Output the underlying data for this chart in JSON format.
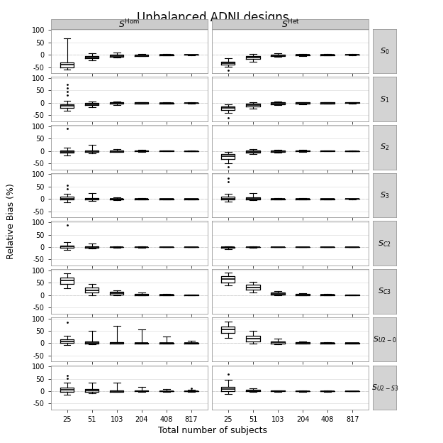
{
  "title": "Unbalanced ADNI designs",
  "col_labels": [
    "$S^{\\mathrm{Hom}}$",
    "$S^{\\mathrm{Het}}$"
  ],
  "row_labels": [
    "$S_{0}$",
    "$S_{1}$",
    "$S_{2}$",
    "$S_{3}$",
    "$S_{C2}$",
    "$S_{C3}$",
    "$S_{U2-0}$",
    "$S_{U2-S3}$"
  ],
  "x_ticks": [
    25,
    51,
    103,
    204,
    408,
    817
  ],
  "xlabel": "Total number of subjects",
  "ylabel": "Relative Bias (%)",
  "background_color": "#ffffff",
  "panel_bg": "#ffffff",
  "header_bg": "#cccccc",
  "label_bg": "#d3d3d3",
  "dashed_color": "#bbbbbb",
  "boxes": {
    "S0_Hom": {
      "25": {
        "q1": -50,
        "med": -40,
        "q3": -30,
        "whislo": -60,
        "whishi": 65,
        "fliers_hi": [],
        "fliers_lo": []
      },
      "51": {
        "q1": -15,
        "med": -10,
        "q3": -5,
        "whislo": -22,
        "whishi": 5,
        "fliers_hi": [],
        "fliers_lo": []
      },
      "103": {
        "q1": -7,
        "med": -4,
        "q3": -1,
        "whislo": -12,
        "whishi": 8,
        "fliers_hi": [],
        "fliers_lo": []
      },
      "204": {
        "q1": -4,
        "med": -2,
        "q3": 0,
        "whislo": -6,
        "whishi": 4,
        "fliers_hi": [],
        "fliers_lo": []
      },
      "408": {
        "q1": -2,
        "med": -1,
        "q3": 0,
        "whislo": -3,
        "whishi": 2,
        "fliers_hi": [],
        "fliers_lo": []
      },
      "817": {
        "q1": -1,
        "med": 0,
        "q3": 0,
        "whislo": -2,
        "whishi": 1,
        "fliers_hi": [],
        "fliers_lo": []
      }
    },
    "S0_Het": {
      "25": {
        "q1": -40,
        "med": -35,
        "q3": -28,
        "whislo": -48,
        "whishi": -15,
        "fliers_hi": [],
        "fliers_lo": [
          -62
        ]
      },
      "51": {
        "q1": -18,
        "med": -12,
        "q3": -6,
        "whislo": -28,
        "whishi": 2,
        "fliers_hi": [],
        "fliers_lo": []
      },
      "103": {
        "q1": -5,
        "med": -2,
        "q3": 1,
        "whislo": -8,
        "whishi": 5,
        "fliers_hi": [],
        "fliers_lo": []
      },
      "204": {
        "q1": -3,
        "med": -1,
        "q3": 1,
        "whislo": -5,
        "whishi": 3,
        "fliers_hi": [],
        "fliers_lo": []
      },
      "408": {
        "q1": -2,
        "med": 0,
        "q3": 1,
        "whislo": -3,
        "whishi": 3,
        "fliers_hi": [],
        "fliers_lo": []
      },
      "817": {
        "q1": -1,
        "med": 0,
        "q3": 1,
        "whislo": -2,
        "whishi": 2,
        "fliers_hi": [],
        "fliers_lo": []
      }
    },
    "S1_Hom": {
      "25": {
        "q1": -20,
        "med": -12,
        "q3": -5,
        "whislo": -32,
        "whishi": 8,
        "fliers_hi": [
          75,
          60,
          45,
          30
        ],
        "fliers_lo": []
      },
      "51": {
        "q1": -10,
        "med": -6,
        "q3": -1,
        "whislo": -18,
        "whishi": 5,
        "fliers_hi": [],
        "fliers_lo": []
      },
      "103": {
        "q1": -4,
        "med": -1,
        "q3": 1,
        "whislo": -8,
        "whishi": 4,
        "fliers_hi": [],
        "fliers_lo": []
      },
      "204": {
        "q1": -2,
        "med": -1,
        "q3": 1,
        "whislo": -4,
        "whishi": 3,
        "fliers_hi": [],
        "fliers_lo": []
      },
      "408": {
        "q1": -2,
        "med": -1,
        "q3": 0,
        "whislo": -3,
        "whishi": 2,
        "fliers_hi": [],
        "fliers_lo": []
      },
      "817": {
        "q1": -1,
        "med": 0,
        "q3": 0,
        "whislo": -2,
        "whishi": 1,
        "fliers_hi": [],
        "fliers_lo": []
      }
    },
    "S1_Het": {
      "25": {
        "q1": -30,
        "med": -22,
        "q3": -15,
        "whislo": -42,
        "whishi": -5,
        "fliers_hi": [],
        "fliers_lo": [
          -62
        ]
      },
      "51": {
        "q1": -15,
        "med": -10,
        "q3": -4,
        "whislo": -24,
        "whishi": 2,
        "fliers_hi": [],
        "fliers_lo": []
      },
      "103": {
        "q1": -5,
        "med": -2,
        "q3": 1,
        "whislo": -8,
        "whishi": 4,
        "fliers_hi": [],
        "fliers_lo": []
      },
      "204": {
        "q1": -3,
        "med": -1,
        "q3": 1,
        "whislo": -5,
        "whishi": 3,
        "fliers_hi": [],
        "fliers_lo": []
      },
      "408": {
        "q1": -2,
        "med": 0,
        "q3": 1,
        "whislo": -3,
        "whishi": 2,
        "fliers_hi": [],
        "fliers_lo": []
      },
      "817": {
        "q1": -1,
        "med": 0,
        "q3": 1,
        "whislo": -2,
        "whishi": 2,
        "fliers_hi": [],
        "fliers_lo": []
      }
    },
    "S2_Hom": {
      "25": {
        "q1": -8,
        "med": -3,
        "q3": 2,
        "whislo": -18,
        "whishi": 12,
        "fliers_hi": [
          90
        ],
        "fliers_lo": []
      },
      "51": {
        "q1": -5,
        "med": -1,
        "q3": 2,
        "whislo": -10,
        "whishi": 25,
        "fliers_hi": [],
        "fliers_lo": []
      },
      "103": {
        "q1": -3,
        "med": 0,
        "q3": 2,
        "whislo": -5,
        "whishi": 7,
        "fliers_hi": [],
        "fliers_lo": []
      },
      "204": {
        "q1": -2,
        "med": 0,
        "q3": 1,
        "whislo": -3,
        "whishi": 4,
        "fliers_hi": [],
        "fliers_lo": []
      },
      "408": {
        "q1": -1,
        "med": 0,
        "q3": 1,
        "whislo": -2,
        "whishi": 2,
        "fliers_hi": [],
        "fliers_lo": []
      },
      "817": {
        "q1": -1,
        "med": 0,
        "q3": 0,
        "whislo": -1,
        "whishi": 1,
        "fliers_hi": [],
        "fliers_lo": []
      }
    },
    "S2_Het": {
      "25": {
        "q1": -32,
        "med": -22,
        "q3": -12,
        "whislo": -50,
        "whishi": -3,
        "fliers_hi": [],
        "fliers_lo": [
          -65
        ]
      },
      "51": {
        "q1": -8,
        "med": -3,
        "q3": 1,
        "whislo": -14,
        "whishi": 7,
        "fliers_hi": [],
        "fliers_lo": []
      },
      "103": {
        "q1": -4,
        "med": 0,
        "q3": 2,
        "whislo": -6,
        "whishi": 5,
        "fliers_hi": [],
        "fliers_lo": []
      },
      "204": {
        "q1": -2,
        "med": 0,
        "q3": 1,
        "whislo": -3,
        "whishi": 3,
        "fliers_hi": [],
        "fliers_lo": []
      },
      "408": {
        "q1": -1,
        "med": 0,
        "q3": 1,
        "whislo": -2,
        "whishi": 2,
        "fliers_hi": [],
        "fliers_lo": []
      },
      "817": {
        "q1": -1,
        "med": 0,
        "q3": 0,
        "whislo": -1,
        "whishi": 1,
        "fliers_hi": [],
        "fliers_lo": []
      }
    },
    "S3_Hom": {
      "25": {
        "q1": -3,
        "med": 2,
        "q3": 8,
        "whislo": -15,
        "whishi": 22,
        "fliers_hi": [
          55,
          42
        ],
        "fliers_lo": []
      },
      "51": {
        "q1": -2,
        "med": 1,
        "q3": 5,
        "whislo": -8,
        "whishi": 25,
        "fliers_hi": [],
        "fliers_lo": []
      },
      "103": {
        "q1": -2,
        "med": 0,
        "q3": 2,
        "whislo": -4,
        "whishi": 6,
        "fliers_hi": [],
        "fliers_lo": []
      },
      "204": {
        "q1": -1,
        "med": 0,
        "q3": 1,
        "whislo": -2,
        "whishi": 3,
        "fliers_hi": [],
        "fliers_lo": []
      },
      "408": {
        "q1": -1,
        "med": 0,
        "q3": 1,
        "whislo": -1,
        "whishi": 2,
        "fliers_hi": [],
        "fliers_lo": []
      },
      "817": {
        "q1": -1,
        "med": 0,
        "q3": 0,
        "whislo": -1,
        "whishi": 1,
        "fliers_hi": [],
        "fliers_lo": []
      }
    },
    "S3_Het": {
      "25": {
        "q1": -3,
        "med": 2,
        "q3": 8,
        "whislo": -12,
        "whishi": 22,
        "fliers_hi": [
          85,
          70
        ],
        "fliers_lo": []
      },
      "51": {
        "q1": -2,
        "med": 2,
        "q3": 7,
        "whislo": -6,
        "whishi": 25,
        "fliers_hi": [],
        "fliers_lo": []
      },
      "103": {
        "q1": -2,
        "med": 0,
        "q3": 2,
        "whislo": -3,
        "whishi": 5,
        "fliers_hi": [],
        "fliers_lo": []
      },
      "204": {
        "q1": -1,
        "med": 0,
        "q3": 1,
        "whislo": -2,
        "whishi": 3,
        "fliers_hi": [],
        "fliers_lo": []
      },
      "408": {
        "q1": -1,
        "med": 0,
        "q3": 1,
        "whislo": -1,
        "whishi": 2,
        "fliers_hi": [],
        "fliers_lo": []
      },
      "817": {
        "q1": 0,
        "med": 0,
        "q3": 1,
        "whislo": -1,
        "whishi": 1,
        "fliers_hi": [],
        "fliers_lo": []
      }
    },
    "SC2_Hom": {
      "25": {
        "q1": -2,
        "med": 2,
        "q3": 7,
        "whislo": -12,
        "whishi": 20,
        "fliers_hi": [
          88
        ],
        "fliers_lo": []
      },
      "51": {
        "q1": -2,
        "med": 0,
        "q3": 3,
        "whislo": -5,
        "whishi": 14,
        "fliers_hi": [],
        "fliers_lo": []
      },
      "103": {
        "q1": -1,
        "med": 0,
        "q3": 1,
        "whislo": -2,
        "whishi": 4,
        "fliers_hi": [],
        "fliers_lo": []
      },
      "204": {
        "q1": -1,
        "med": 0,
        "q3": 1,
        "whislo": -2,
        "whishi": 2,
        "fliers_hi": [],
        "fliers_lo": []
      },
      "408": {
        "q1": -1,
        "med": 0,
        "q3": 1,
        "whislo": -1,
        "whishi": 1,
        "fliers_hi": [],
        "fliers_lo": []
      },
      "817": {
        "q1": 0,
        "med": 0,
        "q3": 0,
        "whislo": -1,
        "whishi": 1,
        "fliers_hi": [],
        "fliers_lo": []
      }
    },
    "SC2_Het": {
      "25": {
        "q1": -2,
        "med": -1,
        "q3": 1,
        "whislo": -8,
        "whishi": 4,
        "fliers_hi": [],
        "fliers_lo": []
      },
      "51": {
        "q1": -1,
        "med": 0,
        "q3": 1,
        "whislo": -2,
        "whishi": 2,
        "fliers_hi": [],
        "fliers_lo": []
      },
      "103": {
        "q1": -1,
        "med": 0,
        "q3": 0,
        "whislo": -1,
        "whishi": 1,
        "fliers_hi": [],
        "fliers_lo": []
      },
      "204": {
        "q1": 0,
        "med": 0,
        "q3": 0,
        "whislo": -1,
        "whishi": 1,
        "fliers_hi": [],
        "fliers_lo": []
      },
      "408": {
        "q1": 0,
        "med": 0,
        "q3": 0,
        "whislo": 0,
        "whishi": 0,
        "fliers_hi": [],
        "fliers_lo": []
      },
      "817": {
        "q1": 0,
        "med": 0,
        "q3": 0,
        "whislo": 0,
        "whishi": 0,
        "fliers_hi": [],
        "fliers_lo": []
      }
    },
    "SC3_Hom": {
      "25": {
        "q1": 45,
        "med": 60,
        "q3": 72,
        "whislo": 28,
        "whishi": 88,
        "fliers_hi": [],
        "fliers_lo": []
      },
      "51": {
        "q1": 10,
        "med": 20,
        "q3": 32,
        "whislo": -2,
        "whishi": 45,
        "fliers_hi": [],
        "fliers_lo": []
      },
      "103": {
        "q1": 2,
        "med": 8,
        "q3": 14,
        "whislo": -2,
        "whishi": 20,
        "fliers_hi": [],
        "fliers_lo": []
      },
      "204": {
        "q1": 0,
        "med": 3,
        "q3": 6,
        "whislo": -2,
        "whishi": 10,
        "fliers_hi": [],
        "fliers_lo": []
      },
      "408": {
        "q1": 0,
        "med": 1,
        "q3": 3,
        "whislo": -1,
        "whishi": 5,
        "fliers_hi": [],
        "fliers_lo": []
      },
      "817": {
        "q1": 0,
        "med": 0,
        "q3": 1,
        "whislo": -1,
        "whishi": 2,
        "fliers_hi": [],
        "fliers_lo": []
      }
    },
    "SC3_Het": {
      "25": {
        "q1": 52,
        "med": 65,
        "q3": 76,
        "whislo": 38,
        "whishi": 90,
        "fliers_hi": [],
        "fliers_lo": []
      },
      "51": {
        "q1": 22,
        "med": 32,
        "q3": 42,
        "whislo": 10,
        "whishi": 55,
        "fliers_hi": [],
        "fliers_lo": []
      },
      "103": {
        "q1": 2,
        "med": 6,
        "q3": 10,
        "whislo": -1,
        "whishi": 15,
        "fliers_hi": [],
        "fliers_lo": []
      },
      "204": {
        "q1": 0,
        "med": 2,
        "q3": 4,
        "whislo": -1,
        "whishi": 7,
        "fliers_hi": [],
        "fliers_lo": []
      },
      "408": {
        "q1": 0,
        "med": 1,
        "q3": 2,
        "whislo": -1,
        "whishi": 4,
        "fliers_hi": [],
        "fliers_lo": []
      },
      "817": {
        "q1": 0,
        "med": 0,
        "q3": 1,
        "whislo": -1,
        "whishi": 2,
        "fliers_hi": [],
        "fliers_lo": []
      }
    },
    "SU20_Hom": {
      "25": {
        "q1": 2,
        "med": 8,
        "q3": 16,
        "whislo": -8,
        "whishi": 30,
        "fliers_hi": [
          85
        ],
        "fliers_lo": []
      },
      "51": {
        "q1": -1,
        "med": 2,
        "q3": 8,
        "whislo": -5,
        "whishi": 50,
        "fliers_hi": [],
        "fliers_lo": []
      },
      "103": {
        "q1": -1,
        "med": 0,
        "q3": 3,
        "whislo": -3,
        "whishi": 70,
        "fliers_hi": [],
        "fliers_lo": []
      },
      "204": {
        "q1": -1,
        "med": 0,
        "q3": 2,
        "whislo": -2,
        "whishi": 55,
        "fliers_hi": [],
        "fliers_lo": []
      },
      "408": {
        "q1": -1,
        "med": 0,
        "q3": 1,
        "whislo": -2,
        "whishi": 28,
        "fliers_hi": [],
        "fliers_lo": []
      },
      "817": {
        "q1": -1,
        "med": 0,
        "q3": 1,
        "whislo": -2,
        "whishi": 10,
        "fliers_hi": [],
        "fliers_lo": []
      }
    },
    "SU20_Het": {
      "25": {
        "q1": 40,
        "med": 55,
        "q3": 68,
        "whislo": 20,
        "whishi": 88,
        "fliers_hi": [],
        "fliers_lo": []
      },
      "51": {
        "q1": 8,
        "med": 18,
        "q3": 30,
        "whislo": -2,
        "whishi": 50,
        "fliers_hi": [],
        "fliers_lo": []
      },
      "103": {
        "q1": -1,
        "med": 3,
        "q3": 8,
        "whislo": -4,
        "whishi": 18,
        "fliers_hi": [],
        "fliers_lo": []
      },
      "204": {
        "q1": -1,
        "med": 1,
        "q3": 3,
        "whislo": -2,
        "whishi": 8,
        "fliers_hi": [],
        "fliers_lo": []
      },
      "408": {
        "q1": -1,
        "med": 0,
        "q3": 2,
        "whislo": -2,
        "whishi": 5,
        "fliers_hi": [],
        "fliers_lo": []
      },
      "817": {
        "q1": -1,
        "med": 0,
        "q3": 1,
        "whislo": -2,
        "whishi": 2,
        "fliers_hi": [],
        "fliers_lo": []
      }
    },
    "SU2S3_Hom": {
      "25": {
        "q1": -2,
        "med": 6,
        "q3": 16,
        "whislo": -15,
        "whishi": 35,
        "fliers_hi": [
          62,
          52
        ],
        "fliers_lo": []
      },
      "51": {
        "q1": -2,
        "med": 2,
        "q3": 8,
        "whislo": -8,
        "whishi": 35,
        "fliers_hi": [],
        "fliers_lo": []
      },
      "103": {
        "q1": -2,
        "med": 0,
        "q3": 3,
        "whislo": -4,
        "whishi": 35,
        "fliers_hi": [],
        "fliers_lo": []
      },
      "204": {
        "q1": -1,
        "med": 0,
        "q3": 2,
        "whislo": -2,
        "whishi": 18,
        "fliers_hi": [],
        "fliers_lo": []
      },
      "408": {
        "q1": -1,
        "med": 0,
        "q3": 1,
        "whislo": -2,
        "whishi": 8,
        "fliers_hi": [],
        "fliers_lo": []
      },
      "817": {
        "q1": -1,
        "med": 0,
        "q3": 1,
        "whislo": -2,
        "whishi": 5,
        "fliers_hi": [
          12
        ],
        "fliers_lo": []
      }
    },
    "SU2S3_Het": {
      "25": {
        "q1": -1,
        "med": 8,
        "q3": 18,
        "whislo": -12,
        "whishi": 45,
        "fliers_hi": [
          68
        ],
        "fliers_lo": []
      },
      "51": {
        "q1": -1,
        "med": 2,
        "q3": 7,
        "whislo": -4,
        "whishi": 12,
        "fliers_hi": [],
        "fliers_lo": []
      },
      "103": {
        "q1": -1,
        "med": 0,
        "q3": 2,
        "whislo": -2,
        "whishi": 4,
        "fliers_hi": [],
        "fliers_lo": []
      },
      "204": {
        "q1": -1,
        "med": 0,
        "q3": 1,
        "whislo": -2,
        "whishi": 3,
        "fliers_hi": [],
        "fliers_lo": []
      },
      "408": {
        "q1": -1,
        "med": 0,
        "q3": 1,
        "whislo": -2,
        "whishi": 2,
        "fliers_hi": [],
        "fliers_lo": []
      },
      "817": {
        "q1": -1,
        "med": 0,
        "q3": 0,
        "whislo": -1,
        "whishi": 1,
        "fliers_hi": [],
        "fliers_lo": []
      }
    }
  },
  "ylim": [
    -75,
    105
  ],
  "yticks": [
    -50,
    0,
    50,
    100
  ]
}
